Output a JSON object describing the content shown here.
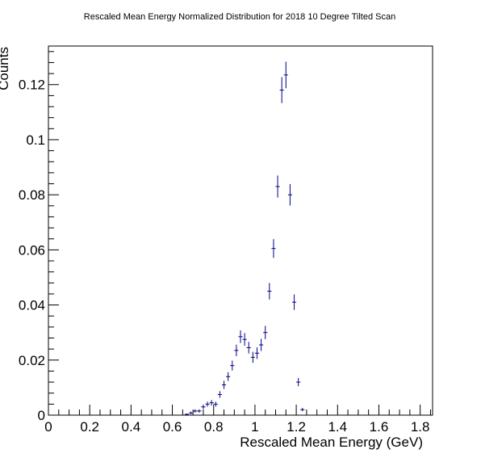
{
  "chart_data": {
    "type": "scatter",
    "title": "Rescaled Mean Energy Normalized Distribution for 2018 10 Degree Tilted Scan",
    "xlabel": "Rescaled Mean Energy (GeV)",
    "ylabel": "Counts",
    "xlim": [
      0,
      1.86
    ],
    "ylim": [
      0,
      0.134
    ],
    "x_ticks": [
      0,
      0.2,
      0.4,
      0.6,
      0.8,
      1,
      1.2,
      1.4,
      1.6,
      1.8
    ],
    "x_tick_labels": [
      "0",
      "0.2",
      "0.4",
      "0.6",
      "0.8",
      "1",
      "1.2",
      "1.4",
      "1.6",
      "1.8"
    ],
    "y_ticks": [
      0,
      0.02,
      0.04,
      0.06,
      0.08,
      0.1,
      0.12
    ],
    "y_tick_labels": [
      "0",
      "0.02",
      "0.04",
      "0.06",
      "0.08",
      "0.1",
      "0.12"
    ],
    "marker_color": "#000080",
    "grid": false,
    "series": [
      {
        "x": [
          0.67,
          0.69,
          0.71,
          0.73,
          0.75,
          0.77,
          0.79,
          0.81,
          0.83,
          0.85,
          0.87,
          0.89,
          0.91,
          0.93,
          0.95,
          0.97,
          0.99,
          1.01,
          1.03,
          1.05,
          1.07,
          1.09,
          1.11,
          1.13,
          1.15,
          1.17,
          1.19,
          1.21
        ],
        "y": [
          0.0003,
          0.0008,
          0.0015,
          0.0015,
          0.003,
          0.004,
          0.0045,
          0.004,
          0.0075,
          0.011,
          0.014,
          0.018,
          0.0235,
          0.0285,
          0.0275,
          0.0245,
          0.021,
          0.0225,
          0.0255,
          0.03,
          0.045,
          0.0605,
          0.083,
          0.118,
          0.1235,
          0.08,
          0.041,
          0.012
        ],
        "yerr": [
          0.0003,
          0.0005,
          0.0006,
          0.0006,
          0.0008,
          0.0009,
          0.001,
          0.0009,
          0.0012,
          0.0015,
          0.0016,
          0.0018,
          0.0021,
          0.0023,
          0.0023,
          0.0021,
          0.002,
          0.0021,
          0.0022,
          0.0024,
          0.003,
          0.0034,
          0.004,
          0.0047,
          0.0048,
          0.0039,
          0.0028,
          0.0015
        ]
      },
      {
        "x": [
          1.23
        ],
        "y": [
          0.002
        ],
        "yerr": [
          0.0006
        ]
      }
    ]
  }
}
